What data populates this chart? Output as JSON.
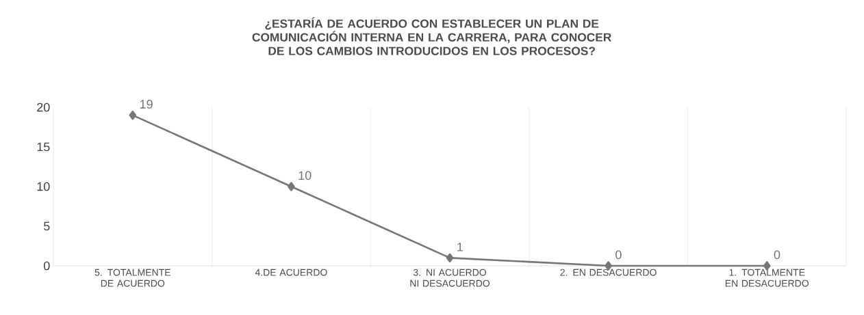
{
  "chart_data": {
    "type": "line",
    "title": "¿ESTARÍA DE ACUERDO CON ESTABLECER UN PLAN DE COMUNICACIÓN INTERNA EN LA CARRERA, PARA CONOCER DE LOS CAMBIOS INTRODUCIDOS EN LOS PROCESOS?",
    "categories": [
      "5. TOTALMENTE DE ACUERDO",
      "4.DE ACUERDO",
      "3. NI ACUERDO NI DESACUERDO",
      "2. EN DESACUERDO",
      "1. TOTALMENTE EN DESACUERDO"
    ],
    "values": [
      19,
      10,
      1,
      0,
      0
    ],
    "color": "#767676",
    "ylim": [
      0,
      20
    ],
    "yticks": [
      0,
      5,
      10,
      15,
      20
    ],
    "grid": "x",
    "marker": "diamond",
    "line_style": "solid",
    "data_labels": true
  }
}
